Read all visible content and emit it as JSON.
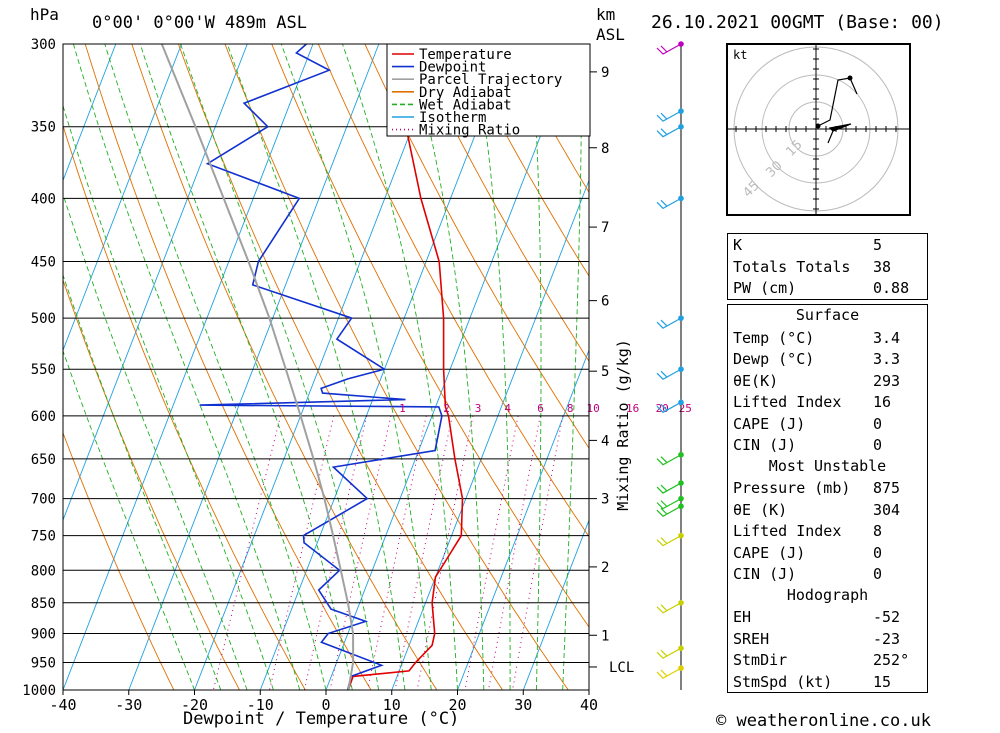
{
  "header": {
    "location": "0°00' 0°00'W 489m ASL",
    "date": "26.10.2021 00GMT (Base: 00)",
    "left_unit": "hPa",
    "right_unit_1": "km",
    "right_unit_2": "ASL"
  },
  "footer": {
    "copyright": "© weatheronline.co.uk"
  },
  "chart_data": {
    "type": "line",
    "title": "",
    "xlabel": "Dewpoint / Temperature (°C)",
    "ylabel": "hPa",
    "y2label": "Mixing Ratio (g/kg)",
    "xlim": [
      -40,
      40
    ],
    "ylim": [
      1000,
      300
    ],
    "x_ticks": [
      -40,
      -30,
      -20,
      -10,
      0,
      10,
      20,
      30,
      40
    ],
    "pressure_levels": [
      300,
      350,
      400,
      450,
      500,
      550,
      600,
      650,
      700,
      750,
      800,
      850,
      900,
      950,
      1000
    ],
    "km_ticks": [
      {
        "km": "1",
        "p": 903
      },
      {
        "km": "2",
        "p": 795
      },
      {
        "km": "3",
        "p": 700
      },
      {
        "km": "4",
        "p": 628
      },
      {
        "km": "5",
        "p": 552
      },
      {
        "km": "6",
        "p": 484
      },
      {
        "km": "7",
        "p": 422
      },
      {
        "km": "8",
        "p": 364
      },
      {
        "km": "9",
        "p": 316
      }
    ],
    "lcl": {
      "label": "LCL",
      "p": 958
    },
    "mixing_ratio_labels": [
      "1",
      "2",
      "3",
      "4",
      "6",
      "8",
      "10",
      "16",
      "20",
      "25"
    ],
    "mixing_ratio_label_x": [
      -4.5,
      2.2,
      7.0,
      11.5,
      16.5,
      21.0,
      24.5,
      30.5,
      35.0,
      38.5
    ],
    "legend": {
      "position": "top-center",
      "entries": [
        {
          "label": "Temperature",
          "color": "#e00000",
          "style": "solid"
        },
        {
          "label": "Dewpoint",
          "color": "#1030d0",
          "style": "solid"
        },
        {
          "label": "Parcel Trajectory",
          "color": "#a0a0a0",
          "style": "solid"
        },
        {
          "label": "Dry Adiabat",
          "color": "#e07000",
          "style": "solid"
        },
        {
          "label": "Wet Adiabat",
          "color": "#20b020",
          "style": "dashed"
        },
        {
          "label": "Isotherm",
          "color": "#20a0e0",
          "style": "solid"
        },
        {
          "label": "Mixing Ratio",
          "color": "#c0007a",
          "style": "dotted"
        }
      ]
    },
    "series": [
      {
        "name": "Temperature",
        "color": "#e00000",
        "points": [
          [
            1000,
            3.4
          ],
          [
            975,
            3.3
          ],
          [
            965,
            11.5
          ],
          [
            950,
            12.0
          ],
          [
            920,
            13.5
          ],
          [
            900,
            13.2
          ],
          [
            850,
            11.0
          ],
          [
            810,
            10.0
          ],
          [
            790,
            10.5
          ],
          [
            750,
            11.5
          ],
          [
            700,
            9.5
          ],
          [
            650,
            6.0
          ],
          [
            600,
            2.5
          ],
          [
            590,
            1.5
          ],
          [
            550,
            -1.0
          ],
          [
            500,
            -4.0
          ],
          [
            450,
            -8.0
          ],
          [
            400,
            -14.5
          ],
          [
            350,
            -21.0
          ],
          [
            320,
            -25.0
          ],
          [
            300,
            -28.0
          ]
        ]
      },
      {
        "name": "Dewpoint",
        "color": "#1030d0",
        "points": [
          [
            1000,
            3.3
          ],
          [
            975,
            3.0
          ],
          [
            955,
            7.0
          ],
          [
            915,
            -3.5
          ],
          [
            900,
            -3.0
          ],
          [
            880,
            2.0
          ],
          [
            860,
            -4.0
          ],
          [
            830,
            -7.0
          ],
          [
            800,
            -5.0
          ],
          [
            760,
            -12.0
          ],
          [
            750,
            -12.5
          ],
          [
            700,
            -5.0
          ],
          [
            660,
            -12.0
          ],
          [
            640,
            2.5
          ],
          [
            600,
            1.5
          ],
          [
            590,
            0.5
          ],
          [
            588,
            -36.0
          ],
          [
            582,
            -5.0
          ],
          [
            575,
            -18.0
          ],
          [
            570,
            -18.5
          ],
          [
            560,
            -15.0
          ],
          [
            550,
            -10.0
          ],
          [
            520,
            -19.0
          ],
          [
            500,
            -18.0
          ],
          [
            470,
            -35.0
          ],
          [
            450,
            -35.5
          ],
          [
            400,
            -33.0
          ],
          [
            375,
            -49.0
          ],
          [
            350,
            -42.0
          ],
          [
            335,
            -47.0
          ],
          [
            315,
            -36.0
          ],
          [
            305,
            -42.0
          ],
          [
            300,
            -41.0
          ]
        ]
      },
      {
        "name": "Parcel Trajectory",
        "color": "#a0a0a0",
        "points": [
          [
            1000,
            3.4
          ],
          [
            950,
            2.5
          ],
          [
            900,
            0.8
          ],
          [
            850,
            -1.8
          ],
          [
            800,
            -4.8
          ],
          [
            750,
            -8.0
          ],
          [
            700,
            -11.5
          ],
          [
            650,
            -15.5
          ],
          [
            600,
            -20.0
          ],
          [
            550,
            -25.0
          ],
          [
            500,
            -30.5
          ],
          [
            450,
            -37.0
          ],
          [
            400,
            -44.5
          ],
          [
            350,
            -53.0
          ],
          [
            300,
            -63.0
          ]
        ]
      }
    ],
    "wind_barbs": [
      {
        "p": 300,
        "color": "#c000c0"
      },
      {
        "p": 340,
        "color": "#20a0e0"
      },
      {
        "p": 350,
        "color": "#20a0e0"
      },
      {
        "p": 400,
        "color": "#20a0e0"
      },
      {
        "p": 500,
        "color": "#20a0e0"
      },
      {
        "p": 550,
        "color": "#20a0e0"
      },
      {
        "p": 585,
        "color": "#20a0e0"
      },
      {
        "p": 645,
        "color": "#20c020"
      },
      {
        "p": 680,
        "color": "#20c020"
      },
      {
        "p": 700,
        "color": "#20c020"
      },
      {
        "p": 710,
        "color": "#20c020"
      },
      {
        "p": 750,
        "color": "#c8d000"
      },
      {
        "p": 850,
        "color": "#c8d000"
      },
      {
        "p": 925,
        "color": "#c8d000"
      },
      {
        "p": 960,
        "color": "#e0d000"
      }
    ]
  },
  "hodograph": {
    "unit": "kt",
    "ring_labels": [
      "15",
      "30",
      "45"
    ]
  },
  "stats": {
    "indices": [
      {
        "label": "K",
        "value": "5"
      },
      {
        "label": "Totals Totals",
        "value": "38"
      },
      {
        "label": "PW (cm)",
        "value": "0.88"
      }
    ],
    "surface": {
      "title": "Surface",
      "rows": [
        {
          "label": "Temp (°C)",
          "value": "3.4"
        },
        {
          "label": "Dewp (°C)",
          "value": "3.3"
        },
        {
          "label": "θE(K)",
          "value": "293"
        },
        {
          "label": "Lifted Index",
          "value": "16"
        },
        {
          "label": "CAPE (J)",
          "value": "0"
        },
        {
          "label": "CIN (J)",
          "value": "0"
        }
      ]
    },
    "most_unstable": {
      "title": "Most Unstable",
      "rows": [
        {
          "label": "Pressure (mb)",
          "value": "875"
        },
        {
          "label": "θE (K)",
          "value": "304"
        },
        {
          "label": "Lifted Index",
          "value": "8"
        },
        {
          "label": "CAPE (J)",
          "value": "0"
        },
        {
          "label": "CIN (J)",
          "value": "0"
        }
      ]
    },
    "hodograph": {
      "title": "Hodograph",
      "rows": [
        {
          "label": "EH",
          "value": "-52"
        },
        {
          "label": "SREH",
          "value": "-23"
        },
        {
          "label": "StmDir",
          "value": "252°"
        },
        {
          "label": "StmSpd (kt)",
          "value": "15"
        }
      ]
    }
  }
}
